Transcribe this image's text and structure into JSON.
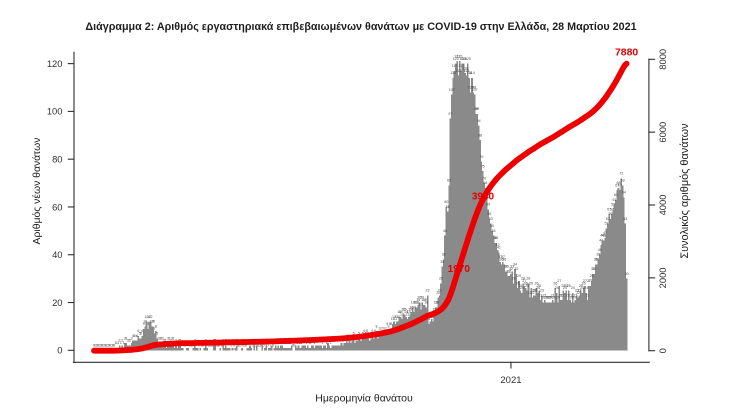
{
  "figure": {
    "title": "Διάγραμμα 2: Αριθμός εργαστηριακά επιβεβαιωμένων θανάτων με COVID-19 στην Ελλάδα, 28 Μαρτίου 2021"
  },
  "colors": {
    "background": "#ffffff",
    "bar": "#8a8a8a",
    "bar_value_label": "#474747",
    "cumulative_line": "#ee0000",
    "annotation": "#e10000",
    "axis": "#2f2f2f",
    "text": "#1f1f1f"
  },
  "chart_data": {
    "type": "bar",
    "title": "Διάγραμμα 2: Αριθμός εργαστηριακά επιβεβαιωμένων θανάτων με COVID-19 στην Ελλάδα, 28 Μαρτίου 2021",
    "xlabel": "Ημερομηνία θανάτου",
    "x_start_date": "2020-02-26",
    "x_end_date": "2021-03-28",
    "x_ticks": [
      {
        "label": "2021",
        "date": "2021-01-01"
      }
    ],
    "left_axis": {
      "label": "Αριθμός νέων θανάτων",
      "ticks": [
        0,
        20,
        40,
        60,
        80,
        100,
        120
      ],
      "lim": [
        0,
        120
      ]
    },
    "right_axis": {
      "label": "Συνολικός αριθμός θανάτων",
      "ticks": [
        0,
        2000,
        4000,
        6000,
        8000
      ],
      "lim": [
        0,
        8000
      ]
    },
    "grid": false,
    "legend": null,
    "series": [
      {
        "name": "Αριθμός νέων θανάτων",
        "type": "bar",
        "axis": "left",
        "values": [
          0,
          0,
          0,
          0,
          0,
          0,
          0,
          0,
          0,
          0,
          0,
          0,
          0,
          0,
          0,
          0,
          1,
          1,
          1,
          2,
          1,
          2,
          1,
          3,
          3,
          2,
          2,
          2,
          3,
          4,
          4,
          4,
          4,
          6,
          5,
          5,
          6,
          9,
          10,
          12,
          9,
          12,
          12,
          10,
          10,
          7,
          8,
          5,
          3,
          3,
          3,
          3,
          2,
          2,
          1,
          3,
          3,
          2,
          3,
          3,
          1,
          2,
          1,
          2,
          2,
          1,
          1,
          0,
          0,
          1,
          1,
          0,
          0,
          0,
          1,
          2,
          1,
          1,
          0,
          1,
          0,
          0,
          1,
          2,
          1,
          0,
          0,
          0,
          0,
          2,
          2,
          0,
          0,
          0,
          1,
          0,
          2,
          1,
          2,
          1,
          1,
          1,
          0,
          1,
          0,
          1,
          2,
          0,
          0,
          0,
          1,
          0,
          0,
          0,
          1,
          1,
          2,
          1,
          0,
          2,
          0,
          2,
          0,
          0,
          0,
          2,
          0,
          1,
          2,
          0,
          1,
          1,
          2,
          0,
          1,
          2,
          1,
          2,
          1,
          2,
          2,
          1,
          1,
          1,
          1,
          1,
          1,
          2,
          0,
          0,
          2,
          1,
          2,
          1,
          1,
          2,
          2,
          2,
          1,
          2,
          1,
          1,
          2,
          2,
          1,
          2,
          2,
          2,
          2,
          2,
          1,
          2,
          2,
          1,
          3,
          2,
          1,
          2,
          2,
          2,
          2,
          2,
          2,
          2,
          3,
          2,
          3,
          3,
          4,
          3,
          4,
          3,
          4,
          5,
          3,
          4,
          4,
          5,
          4,
          4,
          5,
          6,
          5,
          6,
          5,
          4,
          5,
          6,
          5,
          6,
          8,
          5,
          7,
          7,
          7,
          7,
          7,
          7,
          9,
          8,
          9,
          9,
          11,
          12,
          11,
          12,
          12,
          14,
          14,
          13,
          15,
          15,
          14,
          13,
          14,
          15,
          16,
          18,
          16,
          18,
          18,
          19,
          20,
          17,
          20,
          19,
          19,
          18,
          23,
          11,
          12,
          13,
          12,
          15,
          18,
          18,
          22,
          23,
          28,
          35,
          38,
          48,
          60,
          58,
          69,
          97,
          107,
          114,
          117,
          120,
          121,
          115,
          121,
          117,
          120,
          120,
          116,
          115,
          120,
          114,
          108,
          114,
          108,
          107,
          99,
          99,
          94,
          88,
          79,
          75,
          70,
          68,
          65,
          59,
          55,
          53,
          50,
          48,
          45,
          45,
          42,
          41,
          37,
          36,
          37,
          36,
          33,
          33,
          31,
          31,
          32,
          33,
          28,
          34,
          32,
          26,
          29,
          25,
          24,
          28,
          27,
          26,
          25,
          28,
          22,
          26,
          22,
          23,
          23,
          26,
          24,
          25,
          21,
          23,
          20,
          21,
          20,
          20,
          20,
          20,
          20,
          21,
          20,
          26,
          24,
          20,
          27,
          21,
          21,
          25,
          24,
          25,
          21,
          25,
          21,
          20,
          24,
          20,
          21,
          23,
          22,
          23,
          25,
          24,
          26,
          27,
          24,
          21,
          27,
          27,
          29,
          32,
          32,
          36,
          36,
          38,
          40,
          44,
          46,
          46,
          47,
          51,
          53,
          57,
          55,
          57,
          59,
          61,
          63,
          67,
          68,
          67,
          72,
          69,
          64,
          53,
          30
        ]
      },
      {
        "name": "Συνολικός αριθμός θανάτων",
        "type": "line",
        "axis": "right",
        "derived": "cumulative_of_bars"
      }
    ],
    "annotations": [
      {
        "text": "1970",
        "type": "cumulative_crossing",
        "value": 1970
      },
      {
        "text": "3940",
        "type": "cumulative_crossing",
        "value": 3940
      },
      {
        "text": "7880",
        "type": "line_end",
        "value": 7880
      }
    ]
  }
}
